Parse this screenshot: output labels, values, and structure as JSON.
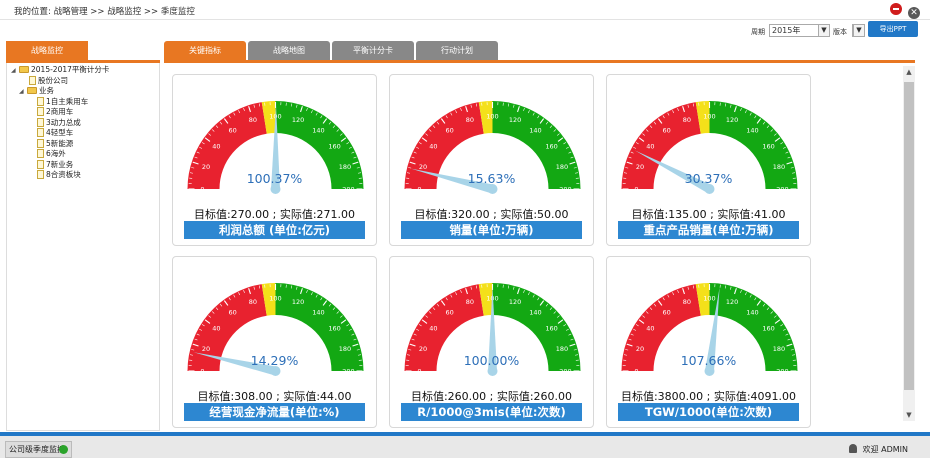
{
  "breadcrumb": "我的位置: 战略管理 >> 战略监控 >> 季度监控",
  "filters": {
    "period_label": "周期",
    "period_value": "2015年",
    "version_label": "版本",
    "version_value": "",
    "export_label": "导出PPT"
  },
  "left_tab": "战略监控",
  "tabs": [
    {
      "label": "关键指标",
      "active": true
    },
    {
      "label": "战略地图",
      "active": false
    },
    {
      "label": "平衡计分卡",
      "active": false
    },
    {
      "label": "行动计划",
      "active": false
    }
  ],
  "tree": {
    "root": "2015-2017平衡计分卡",
    "company": "股份公司",
    "business": "业务",
    "items": [
      "1自主乘用车",
      "2商用车",
      "3动力总成",
      "4轻型车",
      "5新能源",
      "6海外",
      "7新业务",
      "8合资板块"
    ]
  },
  "gauges": [
    {
      "percent": "100.37%",
      "values_text": "目标值:270.00 ; 实际值:271.00",
      "title": "利润总额 (单位:亿元)",
      "needle": 100.37
    },
    {
      "percent": "15.63%",
      "values_text": "目标值:320.00 ; 实际值:50.00",
      "title": "销量(单位:万辆)",
      "needle": 15.63
    },
    {
      "percent": "30.37%",
      "values_text": "目标值:135.00 ; 实际值:41.00",
      "title": "重点产品销量(单位:万辆)",
      "needle": 30.37
    },
    {
      "percent": "14.29%",
      "values_text": "目标值:308.00 ; 实际值:44.00",
      "title": "经营现金净流量(单位:%)",
      "needle": 14.29
    },
    {
      "percent": "100.00%",
      "values_text": "目标值:260.00 ; 实际值:260.00",
      "title": "R/1000@3mis(单位:次数)",
      "needle": 100.0
    },
    {
      "percent": "107.66%",
      "values_text": "目标值:3800.00 ; 实际值:4091.00",
      "title": "TGW/1000(单位:次数)",
      "needle": 107.66
    }
  ],
  "gauge_ticks": [
    "0",
    "20",
    "40",
    "60",
    "80",
    "100",
    "120",
    "140",
    "160",
    "180",
    "200"
  ],
  "colors": {
    "red": "#e8222f",
    "yellow": "#f4e01a",
    "green": "#13a813",
    "needle": "#a8d4e8",
    "accent": "#e87722",
    "blue": "#2178c7"
  },
  "status": {
    "bottom_tab": "公司级季度监控",
    "user": "欢迎 ADMIN"
  },
  "window_icons": {
    "minimize": "minus-circle-icon",
    "close": "close-circle-icon",
    "close_glyph": "✕"
  }
}
